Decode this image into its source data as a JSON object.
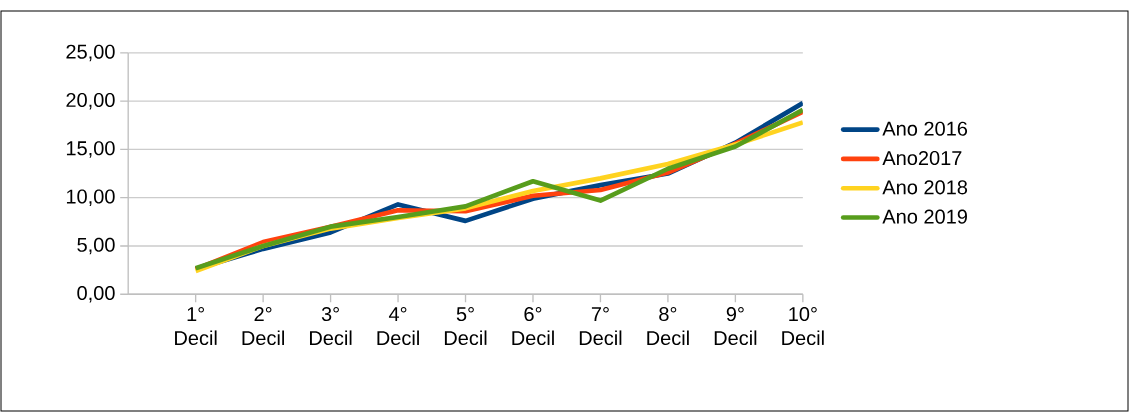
{
  "chart_data": {
    "type": "line",
    "categories": [
      "1° Decil",
      "2° Decil",
      "3° Decil",
      "4° Decil",
      "5° Decil",
      "6° Decil",
      "7° Decil",
      "8° Decil",
      "9° Decil",
      "10° Decil"
    ],
    "series": [
      {
        "name": "Ano 2016",
        "color": "#004586",
        "values": [
          2.6,
          4.7,
          6.4,
          9.3,
          7.6,
          9.9,
          11.3,
          12.5,
          15.7,
          19.8
        ]
      },
      {
        "name": "Ano2017",
        "color": "#ff420e",
        "values": [
          2.6,
          5.4,
          7.0,
          8.7,
          8.6,
          10.2,
          10.8,
          12.6,
          15.6,
          18.9
        ]
      },
      {
        "name": "Ano 2018",
        "color": "#ffd320",
        "values": [
          2.4,
          5.0,
          6.8,
          7.9,
          8.9,
          10.7,
          12.0,
          13.5,
          15.5,
          17.8
        ]
      },
      {
        "name": "Ano 2019",
        "color": "#579d1c",
        "values": [
          2.7,
          5.0,
          7.0,
          8.0,
          9.1,
          11.7,
          9.7,
          13.0,
          15.3,
          19.1
        ]
      }
    ],
    "ylim": [
      0,
      25
    ],
    "yticks": [
      {
        "value": 0,
        "label": "0,00"
      },
      {
        "value": 5,
        "label": "5,00"
      },
      {
        "value": 10,
        "label": "10,00"
      },
      {
        "value": 15,
        "label": "15,00"
      },
      {
        "value": 20,
        "label": "20,00"
      },
      {
        "value": 25,
        "label": "25,00"
      }
    ],
    "grid": "y",
    "legend": "right",
    "marker": "none",
    "line_style": "solid"
  }
}
